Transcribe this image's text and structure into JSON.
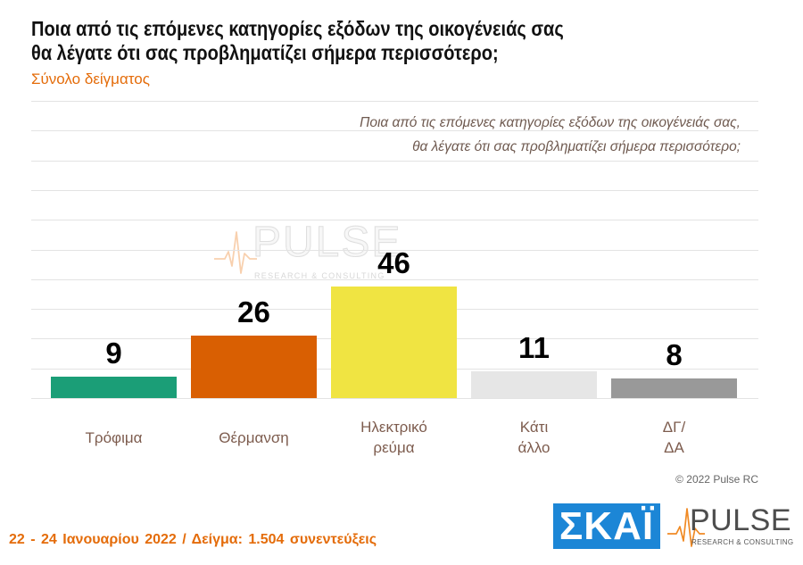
{
  "header": {
    "title": [
      "Ποια από τις επόμενες κατηγορίες εξόδων της οικογένειάς σας",
      "θα λέγατε ότι σας προβληματίζει σήμερα περισσότερο;"
    ],
    "subtitle": "Σύνολο δείγματος"
  },
  "chart_data": {
    "type": "bar",
    "title": [
      "Ποια από τις επόμενες κατηγορίες εξόδων της οικογένειάς σας,",
      "θα λέγατε ότι σας προβληματίζει σήμερα περισσότερο;"
    ],
    "categories": [
      "Τρόφιμα",
      "Θέρμανση",
      "Ηλεκτρικό\nρεύμα",
      "Κάτι\nάλλο",
      "ΔΓ/\nΔΑ"
    ],
    "values": [
      9,
      26,
      46,
      11,
      8
    ],
    "colors": [
      "#1b9e77",
      "#d95f02",
      "#f0e442",
      "#e6e6e6",
      "#999999"
    ],
    "ylim": [
      0,
      123
    ],
    "grid": true,
    "legend": "none",
    "data_labels": true
  },
  "watermark": {
    "name": "PULSE",
    "tagline": "RESEARCH & CONSULTING"
  },
  "copyright": "© 2022 Pulse RC",
  "footer": {
    "fieldwork": "22 - 24 Ιανουαρίου 2022 / Δείγμα: 1.504 συνεντεύξεις"
  },
  "logos": {
    "skai": "ΣΚΑΪ",
    "pulse_name": "PULSE",
    "pulse_tagline": "RESEARCH & CONSULTING",
    "pulse_icon": "heartbeat-icon"
  },
  "colors": {
    "title": "#111111",
    "accent_orange": "#e46c0a",
    "category_label": "#7d5c4e",
    "skai_blue": "#1c86d6",
    "pulse_gray": "#4d4d4d",
    "pulse_orange": "#f08a24"
  }
}
